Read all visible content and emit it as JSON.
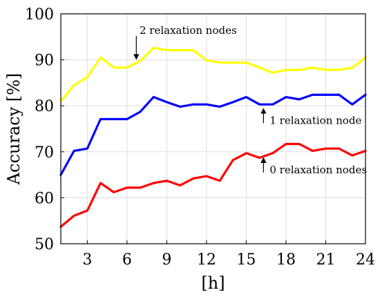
{
  "chart_data": {
    "type": "line",
    "title": "",
    "xlabel": "[h]",
    "ylabel": "Accuracy [%]",
    "xlim": [
      1,
      24
    ],
    "ylim": [
      50,
      100
    ],
    "xticks": [
      3,
      6,
      9,
      12,
      15,
      18,
      21,
      24
    ],
    "yticks": [
      50,
      60,
      70,
      80,
      90,
      100
    ],
    "grid": true,
    "x": [
      1,
      2,
      3,
      4,
      5,
      6,
      7,
      8,
      9,
      10,
      11,
      12,
      13,
      14,
      15,
      16,
      17,
      18,
      19,
      20,
      21,
      22,
      23,
      24
    ],
    "series": [
      {
        "key": "two",
        "color": "#ffff00",
        "values": [
          81,
          84.5,
          86.2,
          90.5,
          88.3,
          88.3,
          89.8,
          92.6,
          92.1,
          92.1,
          92.1,
          89.9,
          89.4,
          89.4,
          89.4,
          88.3,
          87.2,
          87.8,
          87.8,
          88.3,
          87.8,
          87.8,
          88.3,
          90.5
        ]
      },
      {
        "key": "one",
        "color": "#0000ff",
        "values": [
          65,
          70.2,
          70.7,
          77.1,
          77.1,
          77.1,
          78.7,
          81.9,
          80.8,
          79.8,
          80.3,
          80.3,
          79.8,
          80.8,
          81.9,
          80.3,
          80.3,
          81.9,
          81.4,
          82.4,
          82.4,
          82.4,
          80.3,
          82.4
        ]
      },
      {
        "key": "zero",
        "color": "#ff0000",
        "values": [
          53.7,
          56.1,
          57.2,
          63.2,
          61.2,
          62.2,
          62.2,
          63.2,
          63.7,
          62.7,
          64.2,
          64.7,
          63.7,
          68.2,
          69.7,
          68.7,
          69.7,
          71.7,
          71.7,
          70.2,
          70.7,
          70.7,
          69.2,
          70.2
        ]
      }
    ],
    "annotations": [
      {
        "key": "two",
        "text": "2 relaxation nodes",
        "arrow_x": 6.7,
        "arrow_from": 95.2,
        "arrow_to": 90.6,
        "arrow": "down"
      },
      {
        "key": "one",
        "text": "1 relaxation node",
        "arrow_x": 16.3,
        "arrow_from": 76.2,
        "arrow_to": 78.9,
        "arrow": "up"
      },
      {
        "key": "zero",
        "text": "0 relaxation nodes",
        "arrow_x": 16.3,
        "arrow_from": 65.5,
        "arrow_to": 68.2,
        "arrow": "up"
      }
    ]
  }
}
